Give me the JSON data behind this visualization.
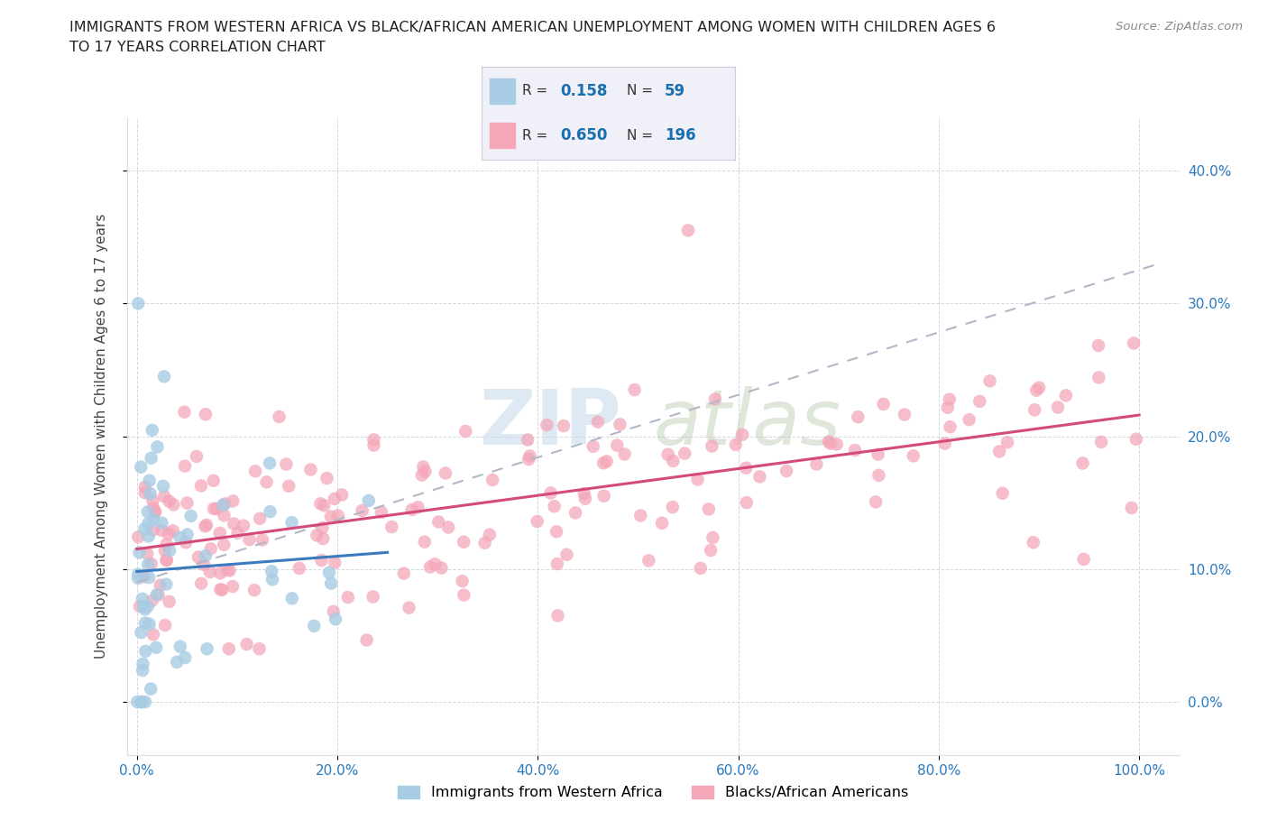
{
  "title_line1": "IMMIGRANTS FROM WESTERN AFRICA VS BLACK/AFRICAN AMERICAN UNEMPLOYMENT AMONG WOMEN WITH CHILDREN AGES 6",
  "title_line2": "TO 17 YEARS CORRELATION CHART",
  "source": "Source: ZipAtlas.com",
  "ylabel": "Unemployment Among Women with Children Ages 6 to 17 years",
  "blue_color": "#a8cce4",
  "pink_color": "#f4a7b9",
  "blue_line_color": "#3a7abf",
  "pink_line_color": "#d44a7a",
  "dashed_line_color": "#b0b8c8",
  "R_blue": 0.158,
  "N_blue": 59,
  "R_pink": 0.65,
  "N_pink": 196,
  "watermark_zip": "ZIP",
  "watermark_atlas": "atlas",
  "title_fontsize": 11.5,
  "ytick_color": "#2a7abf",
  "xtick_color": "#2a7abf"
}
